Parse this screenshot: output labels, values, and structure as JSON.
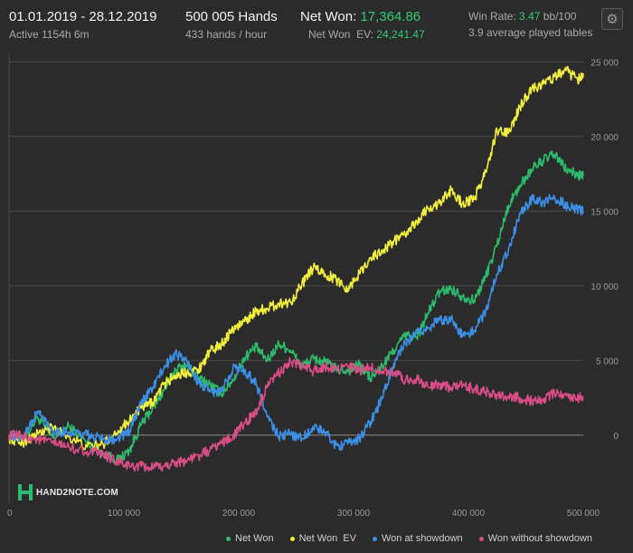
{
  "header": {
    "date_range": "01.01.2019 - 28.12.2019",
    "active": "Active 1154h 6m",
    "hands": "500 005 Hands",
    "hands_per_hour": "433 hands / hour",
    "net_won_label": "Net Won:",
    "net_won_value": "17,364.86",
    "net_won_ev_label": "Net Won  EV:",
    "net_won_ev_value": "24,241.47",
    "win_rate_label": "Win Rate:",
    "win_rate_value": "3.47",
    "win_rate_unit": "bb/100",
    "tables": "3.9 average played tables",
    "settings_icon": "gear-icon"
  },
  "brand": {
    "name": "HAND2NOTE.COM",
    "icon": "h-logo-icon"
  },
  "colors": {
    "net_won": "#2dbb6b",
    "net_won_ev": "#f2ee3e",
    "won_at_showdown": "#3b8fe6",
    "won_without_showdown": "#d94d86",
    "background": "#2b2b2b",
    "grid": "#4a4a4a",
    "zero_line": "#8a8a8a"
  },
  "chart_data": {
    "type": "line",
    "xlim": [
      0,
      500005
    ],
    "ylim": [
      -4500,
      25500
    ],
    "x_ticks": [
      0,
      100000,
      200000,
      300000,
      400000,
      500000
    ],
    "x_tick_labels": [
      "0",
      "100 000",
      "200 000",
      "300 000",
      "400 000",
      "500 000"
    ],
    "y_ticks": [
      0,
      5000,
      10000,
      15000,
      20000,
      25000
    ],
    "y_tick_labels": [
      "0",
      "5 000",
      "10 000",
      "15 000",
      "20 000",
      "25 000"
    ],
    "grid": true,
    "legend_position": "bottom-right",
    "series": [
      {
        "name": "Net Won",
        "color": "#2dbb6b",
        "points": [
          [
            0,
            0
          ],
          [
            12000,
            -300
          ],
          [
            25000,
            1200
          ],
          [
            38000,
            -200
          ],
          [
            52000,
            600
          ],
          [
            68000,
            -500
          ],
          [
            82000,
            -1200
          ],
          [
            95000,
            -1700
          ],
          [
            105000,
            -1000
          ],
          [
            115000,
            700
          ],
          [
            125000,
            1800
          ],
          [
            135000,
            3000
          ],
          [
            145000,
            4400
          ],
          [
            155000,
            4700
          ],
          [
            165000,
            3800
          ],
          [
            175000,
            3400
          ],
          [
            185000,
            2800
          ],
          [
            195000,
            3700
          ],
          [
            205000,
            5200
          ],
          [
            215000,
            5900
          ],
          [
            225000,
            5000
          ],
          [
            235000,
            6100
          ],
          [
            245000,
            5700
          ],
          [
            255000,
            4600
          ],
          [
            265000,
            5100
          ],
          [
            275000,
            4900
          ],
          [
            285000,
            4400
          ],
          [
            295000,
            4300
          ],
          [
            305000,
            4700
          ],
          [
            315000,
            3800
          ],
          [
            325000,
            4600
          ],
          [
            335000,
            5700
          ],
          [
            345000,
            6700
          ],
          [
            355000,
            6500
          ],
          [
            365000,
            8200
          ],
          [
            375000,
            9600
          ],
          [
            385000,
            9800
          ],
          [
            395000,
            9300
          ],
          [
            405000,
            9000
          ],
          [
            415000,
            10600
          ],
          [
            425000,
            12800
          ],
          [
            435000,
            15400
          ],
          [
            445000,
            16700
          ],
          [
            455000,
            17800
          ],
          [
            465000,
            18400
          ],
          [
            475000,
            18800
          ],
          [
            485000,
            17800
          ],
          [
            495000,
            17400
          ],
          [
            500005,
            17365
          ]
        ]
      },
      {
        "name": "Net Won  EV",
        "color": "#f2ee3e",
        "points": [
          [
            0,
            -200
          ],
          [
            12000,
            -500
          ],
          [
            25000,
            100
          ],
          [
            38000,
            500
          ],
          [
            52000,
            -100
          ],
          [
            68000,
            -800
          ],
          [
            82000,
            -600
          ],
          [
            95000,
            300
          ],
          [
            105000,
            1000
          ],
          [
            115000,
            1800
          ],
          [
            125000,
            2200
          ],
          [
            135000,
            3400
          ],
          [
            145000,
            4000
          ],
          [
            155000,
            4200
          ],
          [
            165000,
            4400
          ],
          [
            175000,
            5600
          ],
          [
            185000,
            6100
          ],
          [
            195000,
            7100
          ],
          [
            205000,
            7600
          ],
          [
            215000,
            8300
          ],
          [
            225000,
            8500
          ],
          [
            235000,
            8800
          ],
          [
            245000,
            8900
          ],
          [
            255000,
            10100
          ],
          [
            265000,
            11200
          ],
          [
            275000,
            10800
          ],
          [
            285000,
            10400
          ],
          [
            295000,
            9800
          ],
          [
            305000,
            10800
          ],
          [
            315000,
            11900
          ],
          [
            325000,
            12300
          ],
          [
            335000,
            13000
          ],
          [
            345000,
            13400
          ],
          [
            355000,
            14300
          ],
          [
            365000,
            15200
          ],
          [
            375000,
            15500
          ],
          [
            385000,
            16400
          ],
          [
            395000,
            15500
          ],
          [
            405000,
            15800
          ],
          [
            415000,
            17600
          ],
          [
            425000,
            20400
          ],
          [
            435000,
            20200
          ],
          [
            445000,
            22000
          ],
          [
            455000,
            23200
          ],
          [
            465000,
            23500
          ],
          [
            475000,
            24000
          ],
          [
            485000,
            24400
          ],
          [
            495000,
            23800
          ],
          [
            500005,
            24241
          ]
        ]
      },
      {
        "name": "Won at showdown",
        "color": "#3b8fe6",
        "points": [
          [
            0,
            0
          ],
          [
            12000,
            -200
          ],
          [
            25000,
            1600
          ],
          [
            38000,
            300
          ],
          [
            52000,
            200
          ],
          [
            68000,
            0
          ],
          [
            82000,
            -300
          ],
          [
            95000,
            -200
          ],
          [
            105000,
            300
          ],
          [
            115000,
            2100
          ],
          [
            125000,
            3200
          ],
          [
            135000,
            4500
          ],
          [
            145000,
            5500
          ],
          [
            155000,
            4900
          ],
          [
            165000,
            3500
          ],
          [
            175000,
            2900
          ],
          [
            185000,
            2900
          ],
          [
            195000,
            4500
          ],
          [
            205000,
            4300
          ],
          [
            215000,
            3500
          ],
          [
            225000,
            1200
          ],
          [
            235000,
            -100
          ],
          [
            245000,
            100
          ],
          [
            255000,
            -200
          ],
          [
            265000,
            500
          ],
          [
            275000,
            200
          ],
          [
            285000,
            -700
          ],
          [
            295000,
            -600
          ],
          [
            305000,
            -200
          ],
          [
            315000,
            900
          ],
          [
            325000,
            2500
          ],
          [
            335000,
            4800
          ],
          [
            345000,
            6100
          ],
          [
            355000,
            6800
          ],
          [
            365000,
            7200
          ],
          [
            375000,
            7700
          ],
          [
            385000,
            7800
          ],
          [
            395000,
            6600
          ],
          [
            405000,
            7000
          ],
          [
            415000,
            8300
          ],
          [
            425000,
            10800
          ],
          [
            435000,
            12500
          ],
          [
            445000,
            14800
          ],
          [
            455000,
            15800
          ],
          [
            465000,
            15600
          ],
          [
            475000,
            15900
          ],
          [
            485000,
            15400
          ],
          [
            495000,
            15100
          ],
          [
            500005,
            15000
          ]
        ]
      },
      {
        "name": "Won without showdown",
        "color": "#d94d86",
        "points": [
          [
            0,
            0
          ],
          [
            12000,
            -100
          ],
          [
            25000,
            -300
          ],
          [
            38000,
            -500
          ],
          [
            52000,
            -800
          ],
          [
            68000,
            -1100
          ],
          [
            82000,
            -1300
          ],
          [
            95000,
            -1800
          ],
          [
            105000,
            -2100
          ],
          [
            115000,
            -2100
          ],
          [
            125000,
            -2200
          ],
          [
            135000,
            -2100
          ],
          [
            145000,
            -1800
          ],
          [
            155000,
            -1700
          ],
          [
            165000,
            -1400
          ],
          [
            175000,
            -1000
          ],
          [
            185000,
            -500
          ],
          [
            195000,
            -100
          ],
          [
            205000,
            800
          ],
          [
            215000,
            1500
          ],
          [
            225000,
            3200
          ],
          [
            235000,
            4200
          ],
          [
            245000,
            4900
          ],
          [
            255000,
            4600
          ],
          [
            265000,
            4300
          ],
          [
            275000,
            4600
          ],
          [
            285000,
            4500
          ],
          [
            295000,
            4600
          ],
          [
            305000,
            4300
          ],
          [
            315000,
            4500
          ],
          [
            325000,
            4300
          ],
          [
            335000,
            4200
          ],
          [
            345000,
            3700
          ],
          [
            355000,
            3800
          ],
          [
            365000,
            3200
          ],
          [
            375000,
            3400
          ],
          [
            385000,
            3200
          ],
          [
            395000,
            3300
          ],
          [
            405000,
            3100
          ],
          [
            415000,
            2900
          ],
          [
            425000,
            2700
          ],
          [
            435000,
            2600
          ],
          [
            445000,
            2500
          ],
          [
            455000,
            2300
          ],
          [
            465000,
            2400
          ],
          [
            475000,
            2800
          ],
          [
            485000,
            2700
          ],
          [
            495000,
            2500
          ],
          [
            500005,
            2600
          ]
        ]
      }
    ]
  }
}
